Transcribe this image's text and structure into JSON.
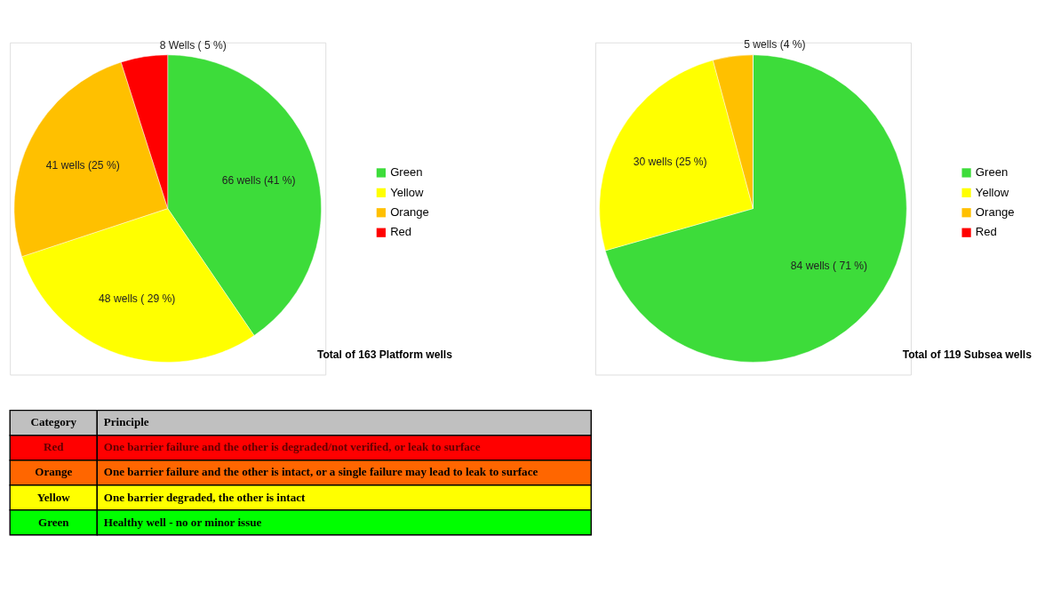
{
  "chart_data": [
    {
      "type": "pie",
      "categories": [
        "Green",
        "Yellow",
        "Orange",
        "Red"
      ],
      "values": [
        66,
        48,
        41,
        8
      ],
      "colors": [
        "#3ddc3a",
        "#ffff00",
        "#ffc000",
        "#ff0000"
      ],
      "value_labels": [
        "66 wells (41 %)",
        "48 wells ( 29 %)",
        "41 wells (25 %)",
        "8 Wells ( 5 %)"
      ],
      "legend": "right",
      "annotations": [
        "Total of 163 Platform wells"
      ]
    },
    {
      "type": "pie",
      "categories": [
        "Green",
        "Yellow",
        "Orange",
        "Red"
      ],
      "values": [
        84,
        30,
        5,
        0
      ],
      "colors": [
        "#3ddc3a",
        "#ffff00",
        "#ffc000",
        "#ff0000"
      ],
      "value_labels": [
        "84 wells ( 71 %)",
        "30 wells (25 %)",
        "5 wells (4 %)",
        null
      ],
      "legend": "right",
      "annotations": [
        "Total of 119 Subsea wells"
      ]
    },
    {
      "type": "other",
      "categories": [
        "Red",
        "Orange",
        "Yellow",
        "Green"
      ],
      "colors": [
        "#ff0000",
        "#ff6600",
        "#ffff00",
        "#00ff00"
      ],
      "annotations": [
        "Category",
        "Principle",
        "One barrier failure and the other is degraded/not verified, or leak to surface",
        "One barrier failure and the other is intact, or a single failure may lead to leak to surface",
        "One barrier degraded, the other is intact",
        "Healthy well - no or minor issue"
      ]
    }
  ]
}
